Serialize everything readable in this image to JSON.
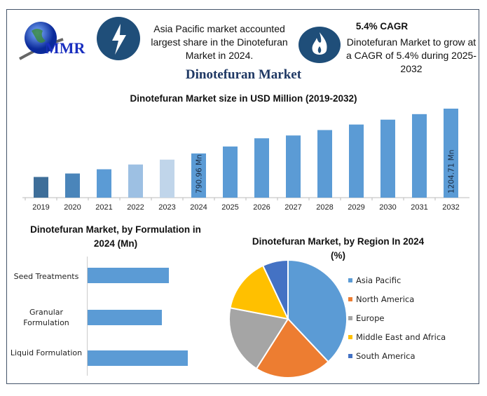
{
  "header": {
    "logo_text": "MMR",
    "highlight1": {
      "icon": "lightning-icon",
      "text": "Asia Pacific market accounted largest share in the Dinotefuran Market in 2024."
    },
    "highlight2": {
      "icon": "flame-icon",
      "title": "5.4% CAGR",
      "text": "Dinotefuran Market to grow at a CAGR of 5.4% during 2025-2032"
    },
    "title": "Dinotefuran Market"
  },
  "colors": {
    "accent": "#1f4e79",
    "bar": "#5b9bd5"
  },
  "chart_data": [
    {
      "type": "bar",
      "title": "Dinotefuran Market size in USD Million (2019-2032)",
      "categories": [
        "2019",
        "2020",
        "2021",
        "2022",
        "2023",
        "2024",
        "2025",
        "2026",
        "2027",
        "2028",
        "2029",
        "2030",
        "2031",
        "2032"
      ],
      "values": [
        574,
        606,
        645,
        689,
        734,
        790.96,
        855,
        931,
        957,
        1007,
        1058,
        1103,
        1154,
        1204.71
      ],
      "colors": [
        "#3e6e99",
        "#4a85ba",
        "#5b9bd5",
        "#9dc0e3",
        "#c0d5ea",
        "#5b9bd5",
        "#5b9bd5",
        "#5b9bd5",
        "#5b9bd5",
        "#5b9bd5",
        "#5b9bd5",
        "#5b9bd5",
        "#5b9bd5",
        "#5b9bd5"
      ],
      "data_labels": {
        "5": "790.96 Mn",
        "13": "1204.71 Mn"
      },
      "ylim": [
        383,
        1250
      ],
      "grid": false
    },
    {
      "type": "bar",
      "orientation": "horizontal",
      "title": "Dinotefuran Market, by Formulation in 2024 (Mn)",
      "categories": [
        "Seed Treatments",
        "Granular Formulation",
        "Liquid Formulation"
      ],
      "values": [
        116,
        106,
        143
      ],
      "color": "#5b9bd5",
      "grid": false
    },
    {
      "type": "pie",
      "title": "Dinotefuran Market, by Region In 2024 (%)",
      "labels": [
        "Asia Pacific",
        "North America",
        "Europe",
        "Middle East and Africa",
        "South America"
      ],
      "values": [
        38,
        21,
        19,
        15,
        7
      ],
      "colors": [
        "#5b9bd5",
        "#ed7d31",
        "#a5a5a5",
        "#ffc000",
        "#4472c4"
      ],
      "legend": "right"
    }
  ]
}
